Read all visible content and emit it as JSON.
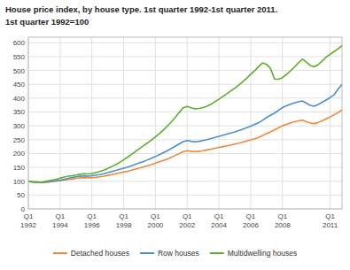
{
  "chart_data": {
    "type": "line",
    "title": "House price index, by house type. 1st quarter 1992-1st quarter 2011.",
    "subtitle": "1st quarter 1992=100",
    "categories": [
      "Q1\n1992",
      null,
      null,
      null,
      null,
      null,
      null,
      null,
      "Q1\n1994",
      null,
      null,
      null,
      null,
      null,
      null,
      null,
      "Q1\n1996",
      null,
      null,
      null,
      null,
      null,
      null,
      null,
      "Q1\n1998",
      null,
      null,
      null,
      null,
      null,
      null,
      null,
      "Q1\n2000",
      null,
      null,
      null,
      null,
      null,
      null,
      null,
      "Q1\n2002",
      null,
      null,
      null,
      null,
      null,
      null,
      null,
      "Q1\n2004",
      null,
      null,
      null,
      null,
      null,
      null,
      null,
      "Q1\n2006",
      null,
      null,
      null,
      null,
      null,
      null,
      null,
      "Q1\n2008",
      null,
      null,
      null,
      null,
      null,
      null,
      null,
      null,
      null,
      null,
      null,
      "Q1\n2011",
      null,
      null,
      null
    ],
    "series": [
      {
        "name": "Detached houses",
        "color": "#f0883c",
        "values": [
          100,
          97,
          96,
          95,
          96,
          97,
          99,
          100,
          102,
          104,
          106,
          108,
          110,
          112,
          113,
          112,
          113,
          114,
          116,
          118,
          121,
          124,
          127,
          130,
          133,
          136,
          140,
          144,
          148,
          152,
          156,
          160,
          165,
          170,
          175,
          180,
          186,
          193,
          200,
          207,
          210,
          208,
          207,
          208,
          210,
          213,
          216,
          219,
          222,
          225,
          228,
          231,
          234,
          237,
          241,
          245,
          249,
          253,
          258,
          265,
          272,
          278,
          285,
          293,
          300,
          305,
          310,
          315,
          318,
          320,
          315,
          310,
          308,
          312,
          318,
          325,
          332,
          340,
          348,
          357
        ]
      },
      {
        "name": "Row houses",
        "color": "#4d8fcc",
        "values": [
          100,
          98,
          97,
          96,
          97,
          98,
          100,
          102,
          104,
          107,
          110,
          113,
          116,
          118,
          119,
          118,
          120,
          122,
          124,
          127,
          131,
          135,
          139,
          143,
          147,
          151,
          156,
          161,
          166,
          171,
          177,
          183,
          189,
          196,
          203,
          210,
          218,
          226,
          235,
          243,
          247,
          244,
          242,
          244,
          247,
          250,
          254,
          258,
          262,
          266,
          270,
          274,
          278,
          283,
          288,
          293,
          299,
          305,
          311,
          320,
          330,
          338,
          346,
          356,
          366,
          372,
          378,
          383,
          387,
          390,
          382,
          374,
          371,
          377,
          385,
          393,
          402,
          412,
          432,
          450
        ]
      },
      {
        "name": "Multidwelling houses",
        "color": "#5ab02c",
        "values": [
          100,
          98,
          97,
          96,
          98,
          101,
          104,
          107,
          111,
          115,
          118,
          120,
          122,
          125,
          127,
          126,
          128,
          131,
          135,
          140,
          146,
          153,
          160,
          168,
          177,
          187,
          197,
          207,
          218,
          228,
          238,
          249,
          260,
          272,
          285,
          299,
          314,
          330,
          348,
          365,
          370,
          365,
          361,
          363,
          366,
          371,
          378,
          387,
          396,
          406,
          416,
          426,
          436,
          447,
          459,
          472,
          486,
          499,
          514,
          527,
          522,
          507,
          469,
          468,
          474,
          485,
          498,
          512,
          527,
          541,
          530,
          518,
          513,
          521,
          534,
          548,
          558,
          568,
          578,
          590
        ]
      }
    ],
    "ylim": [
      0,
      620
    ],
    "yticks": [
      0,
      50,
      100,
      150,
      200,
      250,
      300,
      350,
      400,
      450,
      500,
      550,
      600
    ],
    "grid": true,
    "legend": "bottom"
  }
}
